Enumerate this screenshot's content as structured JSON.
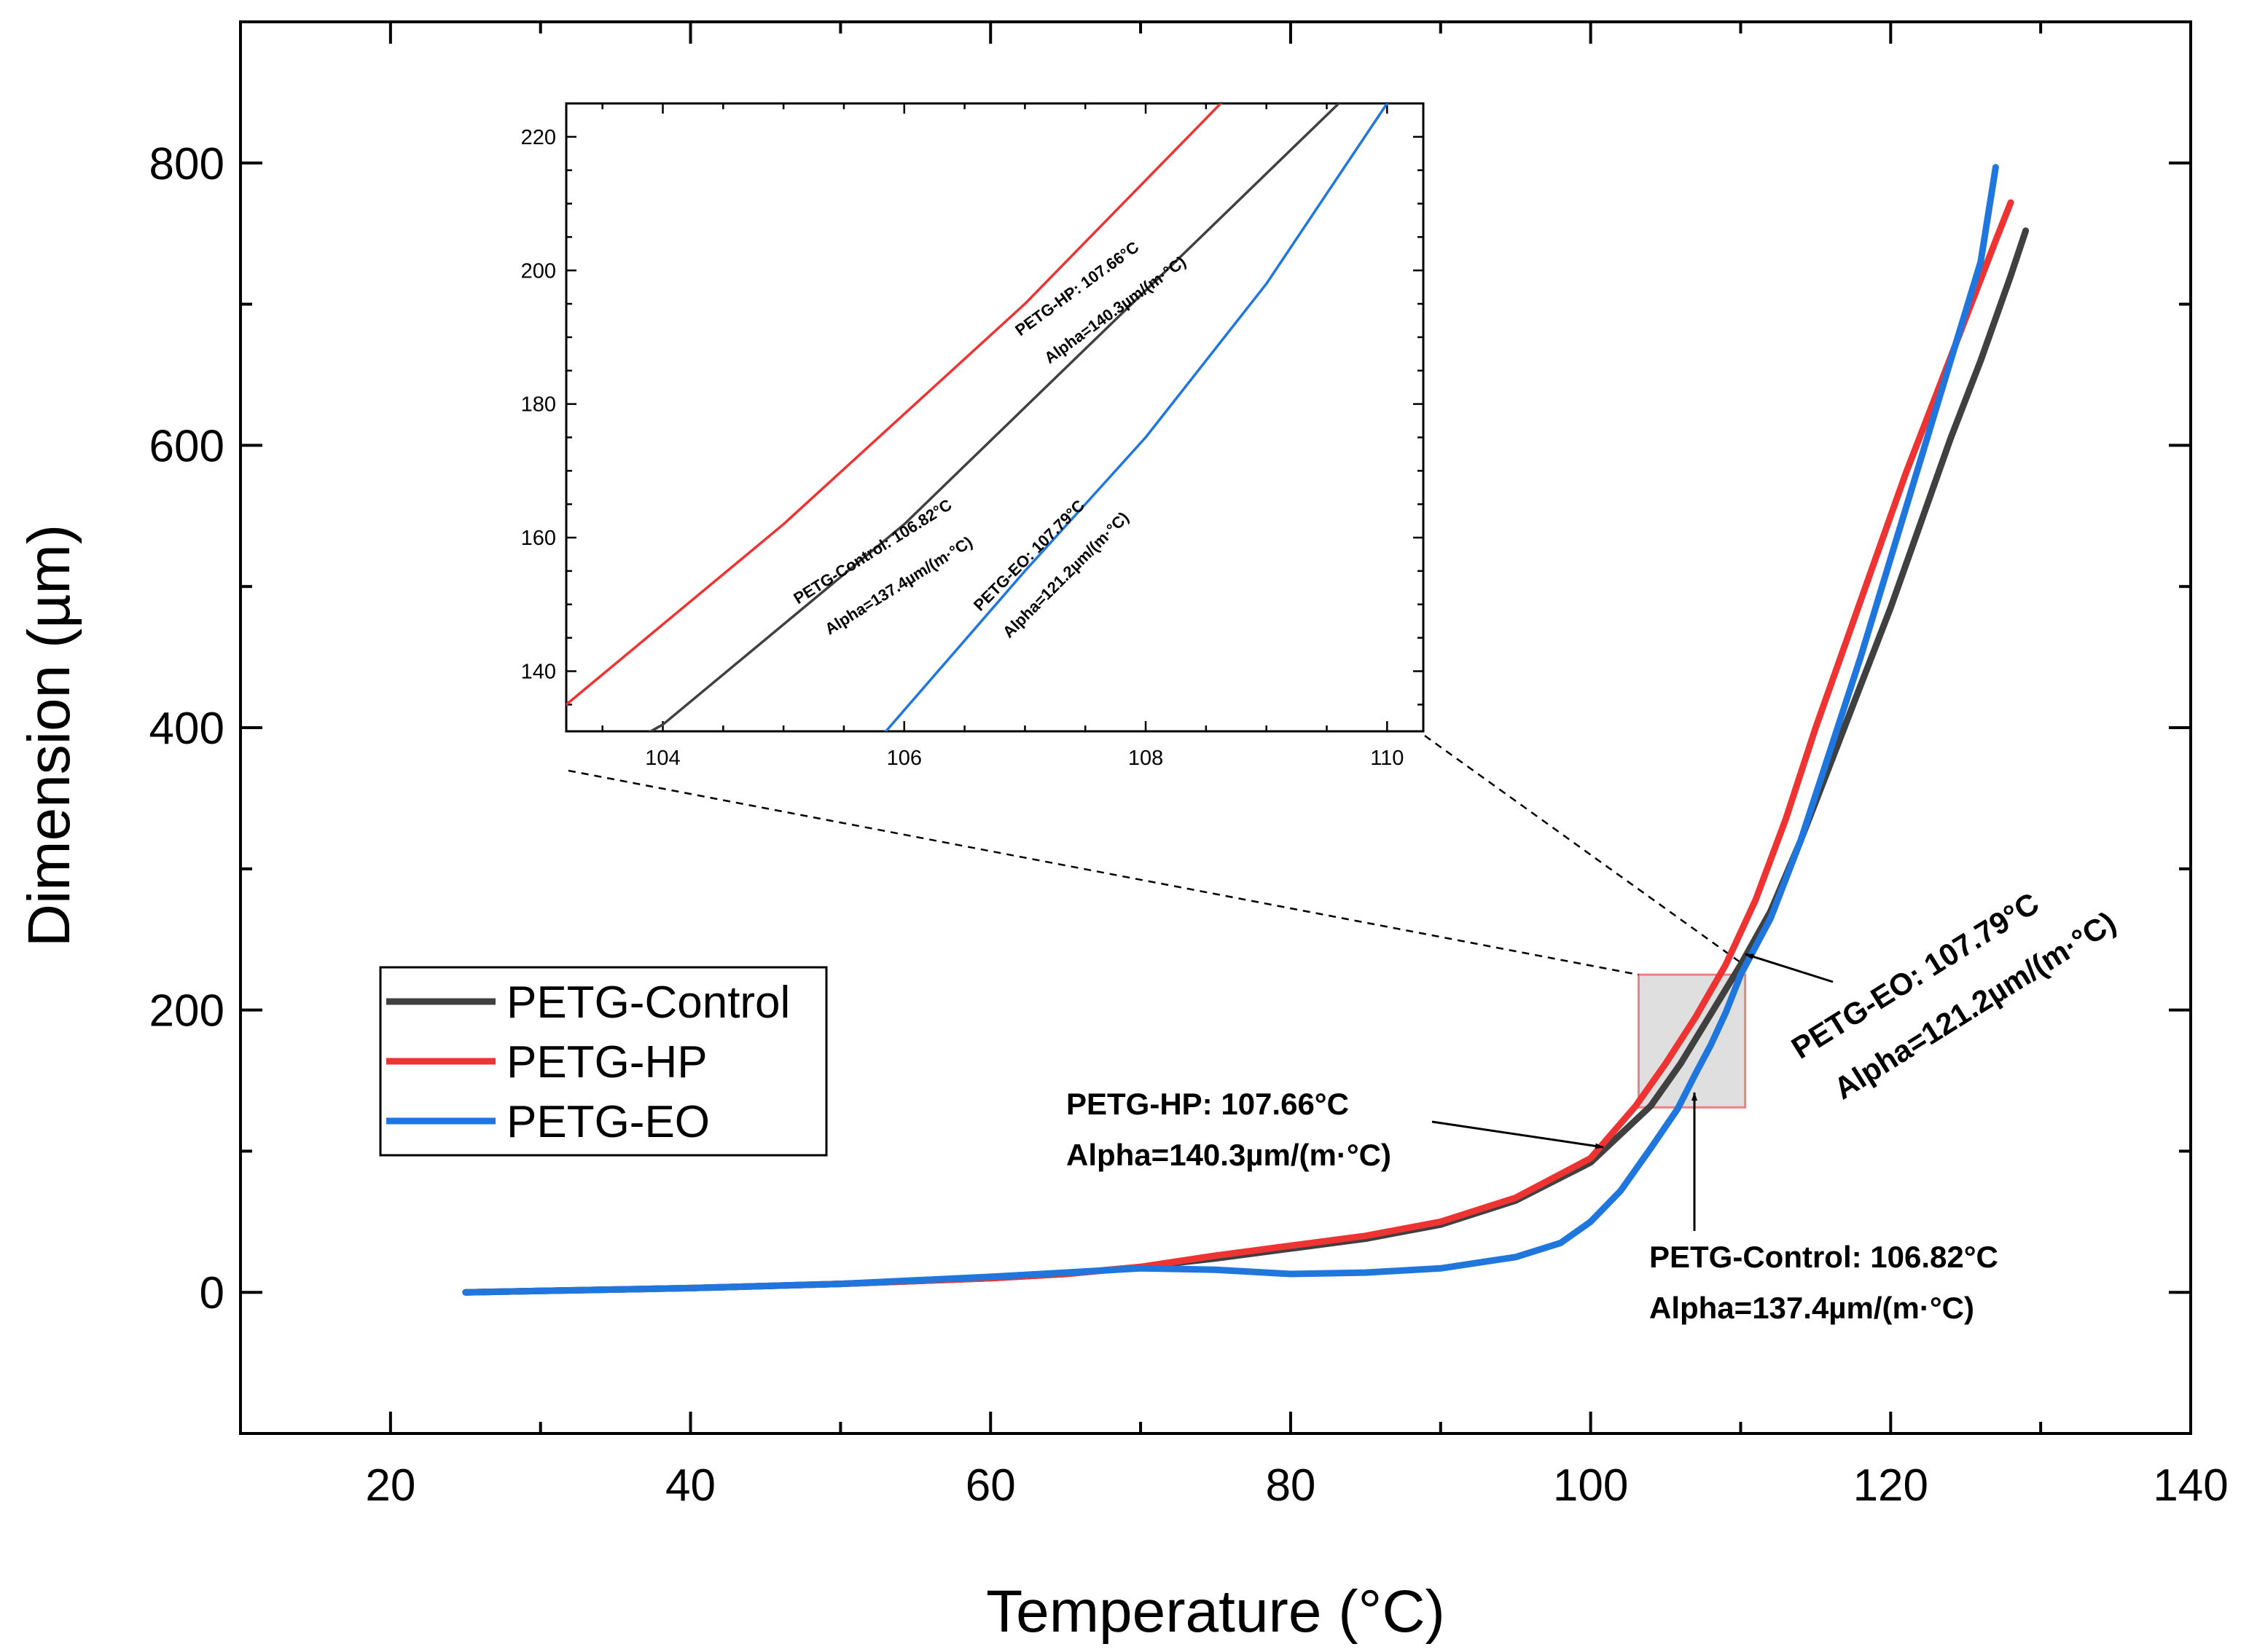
{
  "chart_data": {
    "type": "line",
    "xlabel": "Temperature (°C)",
    "ylabel": "Dimension (µm)",
    "xlim": [
      10,
      140
    ],
    "ylim": [
      -100,
      900
    ],
    "x_ticks": [
      20,
      40,
      60,
      80,
      100,
      120,
      140
    ],
    "y_ticks": [
      0,
      200,
      400,
      600,
      800
    ],
    "legend_position": "left",
    "series": [
      {
        "name": "PETG-Control",
        "color": "#404040",
        "points": [
          [
            25,
            0
          ],
          [
            30,
            1
          ],
          [
            40,
            3
          ],
          [
            50,
            6
          ],
          [
            60,
            10
          ],
          [
            65,
            13
          ],
          [
            70,
            18
          ],
          [
            75,
            24
          ],
          [
            80,
            31
          ],
          [
            85,
            38
          ],
          [
            90,
            48
          ],
          [
            95,
            65
          ],
          [
            100,
            92
          ],
          [
            104,
            132
          ],
          [
            106,
            162
          ],
          [
            108,
            197
          ],
          [
            110,
            232
          ],
          [
            112,
            270
          ],
          [
            114,
            320
          ],
          [
            116,
            375
          ],
          [
            118,
            430
          ],
          [
            120,
            485
          ],
          [
            122,
            545
          ],
          [
            124,
            605
          ],
          [
            126,
            660
          ],
          [
            128,
            720
          ],
          [
            129,
            752
          ]
        ]
      },
      {
        "name": "PETG-HP",
        "color": "#ee3333",
        "points": [
          [
            25,
            0
          ],
          [
            30,
            1
          ],
          [
            40,
            3
          ],
          [
            50,
            6
          ],
          [
            60,
            10
          ],
          [
            65,
            13
          ],
          [
            70,
            18
          ],
          [
            75,
            26
          ],
          [
            80,
            33
          ],
          [
            85,
            40
          ],
          [
            90,
            50
          ],
          [
            95,
            67
          ],
          [
            100,
            95
          ],
          [
            103,
            132
          ],
          [
            105,
            162
          ],
          [
            107,
            195
          ],
          [
            109,
            232
          ],
          [
            111,
            278
          ],
          [
            113,
            335
          ],
          [
            115,
            400
          ],
          [
            117,
            460
          ],
          [
            119,
            520
          ],
          [
            121,
            580
          ],
          [
            123,
            635
          ],
          [
            125,
            690
          ],
          [
            127,
            745
          ],
          [
            128,
            772
          ]
        ]
      },
      {
        "name": "PETG-EO",
        "color": "#1f77dd",
        "points": [
          [
            25,
            0
          ],
          [
            30,
            1
          ],
          [
            40,
            3
          ],
          [
            50,
            6
          ],
          [
            60,
            11
          ],
          [
            65,
            14
          ],
          [
            70,
            17
          ],
          [
            75,
            16
          ],
          [
            80,
            13
          ],
          [
            85,
            14
          ],
          [
            90,
            17
          ],
          [
            95,
            25
          ],
          [
            98,
            35
          ],
          [
            100,
            50
          ],
          [
            102,
            72
          ],
          [
            104,
            102
          ],
          [
            105.8,
            130
          ],
          [
            107,
            155
          ],
          [
            108,
            175
          ],
          [
            109,
            198
          ],
          [
            110,
            225
          ],
          [
            112,
            265
          ],
          [
            114,
            320
          ],
          [
            116,
            385
          ],
          [
            118,
            450
          ],
          [
            120,
            520
          ],
          [
            122,
            590
          ],
          [
            124,
            660
          ],
          [
            126,
            730
          ],
          [
            127,
            797
          ]
        ]
      }
    ],
    "annotations": [
      {
        "lines": [
          "PETG-HP: 107.66°C",
          "Alpha=140.3µm/(m·°C)"
        ]
      },
      {
        "lines": [
          "PETG-Control: 106.82°C",
          "Alpha=137.4µm/(m·°C)"
        ]
      },
      {
        "lines": [
          "PETG-EO: 107.79°C",
          "Alpha=121.2µm/(m·°C)"
        ]
      }
    ],
    "zoom_region": {
      "xlim": [
        103.2,
        110.3
      ],
      "ylim": [
        131,
        225
      ]
    },
    "inset": {
      "xlim": [
        103.2,
        110.3
      ],
      "ylim": [
        131,
        225
      ],
      "x_ticks": [
        104,
        106,
        108,
        110
      ],
      "y_ticks": [
        140,
        160,
        180,
        200,
        220
      ],
      "annotations": [
        {
          "lines": [
            "PETG-HP: 107.66°C",
            "Alpha=140.3µm/(m·°C)"
          ]
        },
        {
          "lines": [
            "PETG-Control: 106.82°C",
            "Alpha=137.4µm/(m·°C)"
          ]
        },
        {
          "lines": [
            "PETG-EO: 107.79°C",
            "Alpha=121.2µm/(m·°C)"
          ]
        }
      ]
    }
  }
}
